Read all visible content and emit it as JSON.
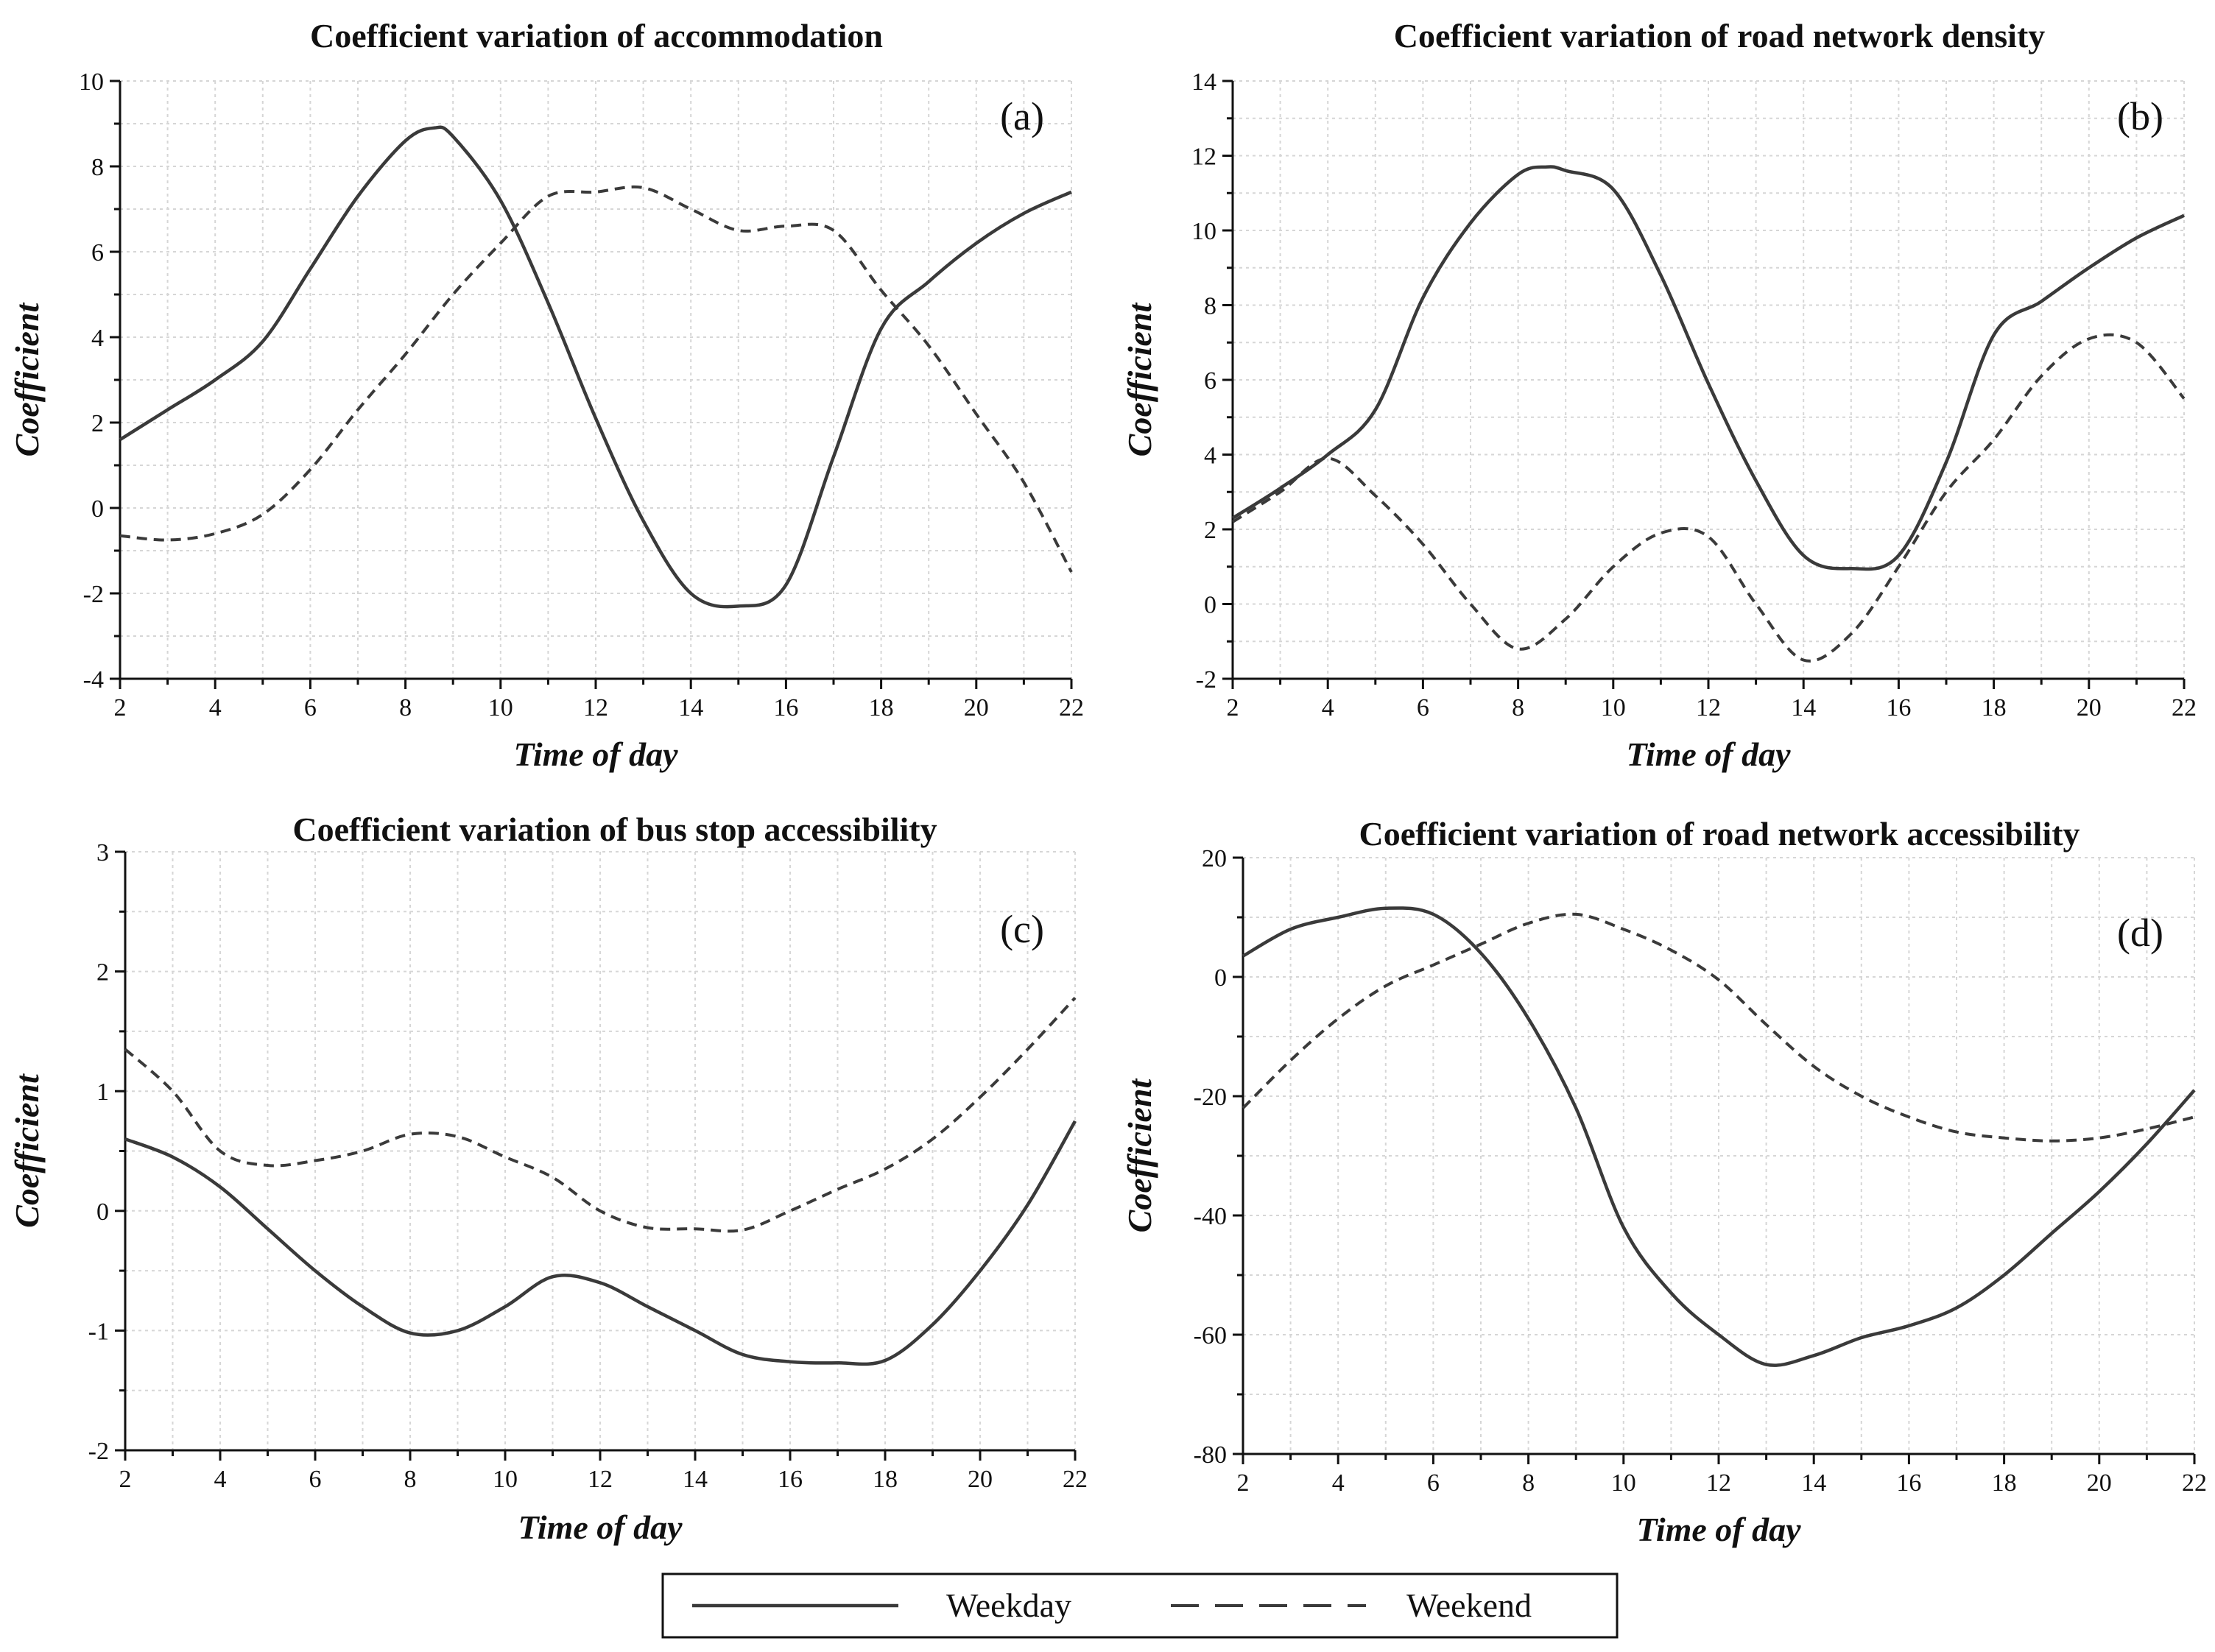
{
  "legend": {
    "weekday_label": "Weekday",
    "weekend_label": "Weekend"
  },
  "chart_data": [
    {
      "id": "a",
      "type": "line",
      "title": "Coefficient variation of accommodation",
      "panel_tag": "(a)",
      "xlabel": "Time of day",
      "ylabel": "Coefficient",
      "xlim": [
        2,
        22
      ],
      "ylim": [
        -4,
        10
      ],
      "xticks": [
        2,
        4,
        6,
        8,
        10,
        12,
        14,
        16,
        18,
        20,
        22
      ],
      "yticks": [
        -4,
        -2,
        0,
        2,
        4,
        6,
        8,
        10
      ],
      "grid": true,
      "series": [
        {
          "name": "Weekday",
          "style": "solid",
          "x": [
            2,
            3,
            4,
            5,
            6,
            7,
            8,
            8.6,
            9,
            10,
            11,
            12,
            13,
            14,
            15,
            16,
            17,
            18,
            19,
            20,
            21,
            22
          ],
          "y": [
            1.6,
            2.3,
            3.0,
            3.9,
            5.6,
            7.3,
            8.6,
            8.9,
            8.7,
            7.2,
            4.8,
            2.1,
            -0.3,
            -2.0,
            -2.3,
            -1.8,
            1.2,
            4.2,
            5.3,
            6.2,
            6.9,
            7.4
          ]
        },
        {
          "name": "Weekend",
          "style": "dashed",
          "x": [
            2,
            3,
            4,
            5,
            6,
            7,
            8,
            9,
            10,
            11,
            12,
            13,
            14,
            15,
            16,
            17,
            18,
            19,
            20,
            21,
            22
          ],
          "y": [
            -0.65,
            -0.75,
            -0.6,
            -0.15,
            0.9,
            2.3,
            3.6,
            5.0,
            6.2,
            7.3,
            7.4,
            7.5,
            7.0,
            6.5,
            6.6,
            6.5,
            5.1,
            3.8,
            2.2,
            0.6,
            -1.5
          ]
        }
      ]
    },
    {
      "id": "b",
      "type": "line",
      "title": "Coefficient variation of road network density",
      "panel_tag": "(b)",
      "xlabel": "Time of day",
      "ylabel": "Coefficient",
      "xlim": [
        2,
        22
      ],
      "ylim": [
        -2,
        14
      ],
      "xticks": [
        2,
        4,
        6,
        8,
        10,
        12,
        14,
        16,
        18,
        20,
        22
      ],
      "yticks": [
        -2,
        0,
        2,
        4,
        6,
        8,
        10,
        12,
        14
      ],
      "grid": true,
      "series": [
        {
          "name": "Weekday",
          "style": "solid",
          "x": [
            2,
            3,
            4,
            5,
            6,
            7,
            8,
            8.6,
            9,
            10,
            11,
            12,
            13,
            14,
            15,
            16,
            17,
            18,
            19,
            20,
            21,
            22
          ],
          "y": [
            2.3,
            3.1,
            4.0,
            5.2,
            8.2,
            10.2,
            11.5,
            11.7,
            11.6,
            11.1,
            8.8,
            5.9,
            3.3,
            1.3,
            0.95,
            1.3,
            3.8,
            7.2,
            8.1,
            9.0,
            9.8,
            10.4
          ]
        },
        {
          "name": "Weekend",
          "style": "dashed",
          "x": [
            2,
            3,
            4,
            5,
            6,
            7,
            8,
            9,
            10,
            11,
            12,
            13,
            14,
            15,
            16,
            17,
            18,
            19,
            20,
            21,
            22
          ],
          "y": [
            2.2,
            3.0,
            3.9,
            2.9,
            1.6,
            0.0,
            -1.2,
            -0.4,
            1.0,
            1.9,
            1.8,
            0.0,
            -1.5,
            -0.8,
            1.0,
            3.0,
            4.4,
            6.1,
            7.1,
            7.0,
            5.5
          ]
        }
      ]
    },
    {
      "id": "c",
      "type": "line",
      "title": "Coefficient variation of bus stop accessibility",
      "panel_tag": "(c)",
      "xlabel": "Time of day",
      "ylabel": "Coefficient",
      "xlim": [
        2,
        22
      ],
      "ylim": [
        -2,
        3
      ],
      "xticks": [
        2,
        4,
        6,
        8,
        10,
        12,
        14,
        16,
        18,
        20,
        22
      ],
      "yticks": [
        -2,
        -1,
        0,
        1,
        2,
        3
      ],
      "grid": true,
      "series": [
        {
          "name": "Weekday",
          "style": "solid",
          "x": [
            2,
            3,
            4,
            5,
            6,
            7,
            8,
            9,
            10,
            11,
            12,
            13,
            14,
            15,
            16,
            17,
            18,
            19,
            20,
            21,
            22
          ],
          "y": [
            0.6,
            0.45,
            0.2,
            -0.15,
            -0.5,
            -0.8,
            -1.02,
            -1.0,
            -0.8,
            -0.55,
            -0.6,
            -0.8,
            -1.0,
            -1.2,
            -1.26,
            -1.27,
            -1.25,
            -0.95,
            -0.5,
            0.05,
            0.75
          ]
        },
        {
          "name": "Weekend",
          "style": "dashed",
          "x": [
            2,
            3,
            4,
            5,
            6,
            7,
            8,
            9,
            10,
            11,
            12,
            13,
            14,
            15,
            16,
            17,
            18,
            19,
            20,
            21,
            22
          ],
          "y": [
            1.35,
            1.0,
            0.5,
            0.38,
            0.42,
            0.5,
            0.64,
            0.62,
            0.45,
            0.28,
            0.0,
            -0.14,
            -0.15,
            -0.16,
            0.0,
            0.18,
            0.35,
            0.6,
            0.95,
            1.35,
            1.78
          ]
        }
      ]
    },
    {
      "id": "d",
      "type": "line",
      "title": "Coefficient variation of road network accessibility",
      "panel_tag": "(d)",
      "xlabel": "Time of day",
      "ylabel": "Coefficient",
      "xlim": [
        2,
        22
      ],
      "ylim": [
        -80,
        20
      ],
      "xticks": [
        2,
        4,
        6,
        8,
        10,
        12,
        14,
        16,
        18,
        20,
        22
      ],
      "yticks": [
        -80,
        -60,
        -40,
        -20,
        0,
        20
      ],
      "grid": true,
      "series": [
        {
          "name": "Weekday",
          "style": "solid",
          "x": [
            2,
            3,
            4,
            5,
            6,
            7,
            8,
            9,
            10,
            11,
            12,
            13,
            14,
            15,
            16,
            17,
            18,
            19,
            20,
            21,
            22
          ],
          "y": [
            3.5,
            8.0,
            10.0,
            11.5,
            10.5,
            4.0,
            -7.0,
            -22.0,
            -42.0,
            -53.0,
            -60.0,
            -65.0,
            -63.5,
            -60.5,
            -58.5,
            -55.5,
            -50.0,
            -43.0,
            -36.0,
            -28.0,
            -19.0
          ]
        },
        {
          "name": "Weekend",
          "style": "dashed",
          "x": [
            2,
            3,
            4,
            5,
            6,
            7,
            8,
            9,
            10,
            11,
            12,
            13,
            14,
            15,
            16,
            17,
            18,
            19,
            20,
            21,
            22
          ],
          "y": [
            -22.0,
            -14.0,
            -7.0,
            -1.5,
            2.0,
            5.5,
            9.0,
            10.5,
            8.0,
            4.5,
            -0.5,
            -8.0,
            -15.0,
            -20.0,
            -23.5,
            -26.0,
            -27.0,
            -27.5,
            -27.0,
            -25.5,
            -23.5
          ]
        }
      ]
    }
  ]
}
